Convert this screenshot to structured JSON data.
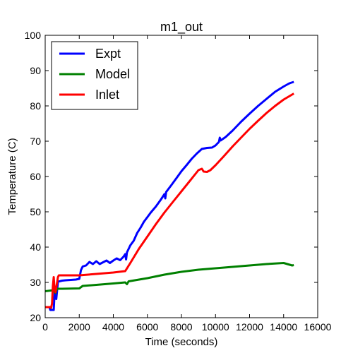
{
  "chart_data": {
    "type": "line",
    "title": "m1_out",
    "xlabel": "Time (seconds)",
    "ylabel": "Temperature (C)",
    "xlim": [
      0,
      16000
    ],
    "ylim": [
      20,
      100
    ],
    "xticks": [
      0,
      2000,
      4000,
      6000,
      8000,
      10000,
      12000,
      14000,
      16000
    ],
    "yticks": [
      20,
      30,
      40,
      50,
      60,
      70,
      80,
      90,
      100
    ],
    "xtick_labels": [
      "0",
      "2000",
      "4000",
      "6000",
      "8000",
      "10000",
      "12000",
      "14000",
      "16000"
    ],
    "ytick_labels": [
      "20",
      "30",
      "40",
      "50",
      "60",
      "70",
      "80",
      "90",
      "100"
    ],
    "grid": false,
    "legend_position": "top-left",
    "series": [
      {
        "name": "Expt",
        "color": "#0000ff",
        "points": [
          [
            0,
            23.0
          ],
          [
            250,
            23.0
          ],
          [
            300,
            22.2
          ],
          [
            500,
            22.2
          ],
          [
            550,
            27.0
          ],
          [
            650,
            25.3
          ],
          [
            750,
            30.2
          ],
          [
            1000,
            30.5
          ],
          [
            1200,
            30.6
          ],
          [
            1800,
            30.8
          ],
          [
            2000,
            31.0
          ],
          [
            2100,
            33.5
          ],
          [
            2200,
            34.5
          ],
          [
            2400,
            34.8
          ],
          [
            2600,
            35.8
          ],
          [
            2800,
            35.2
          ],
          [
            3000,
            36.0
          ],
          [
            3200,
            35.2
          ],
          [
            3400,
            35.7
          ],
          [
            3600,
            36.2
          ],
          [
            3800,
            35.5
          ],
          [
            4000,
            36.2
          ],
          [
            4200,
            36.8
          ],
          [
            4400,
            36.3
          ],
          [
            4600,
            37.3
          ],
          [
            4700,
            38.0
          ],
          [
            4750,
            36.5
          ],
          [
            4800,
            38.5
          ],
          [
            4900,
            39.5
          ],
          [
            5000,
            40.5
          ],
          [
            5200,
            41.8
          ],
          [
            5400,
            44.0
          ],
          [
            5600,
            45.5
          ],
          [
            5800,
            47.2
          ],
          [
            6000,
            48.5
          ],
          [
            6200,
            49.8
          ],
          [
            6500,
            51.5
          ],
          [
            6800,
            53.5
          ],
          [
            7000,
            55.0
          ],
          [
            7050,
            53.8
          ],
          [
            7100,
            55.6
          ],
          [
            7400,
            57.5
          ],
          [
            7700,
            59.5
          ],
          [
            8000,
            61.5
          ],
          [
            8300,
            63.2
          ],
          [
            8600,
            65.0
          ],
          [
            8900,
            66.5
          ],
          [
            9200,
            67.8
          ],
          [
            9500,
            68.1
          ],
          [
            9800,
            68.2
          ],
          [
            10000,
            68.8
          ],
          [
            10200,
            69.8
          ],
          [
            10250,
            71.0
          ],
          [
            10300,
            70.2
          ],
          [
            10600,
            71.2
          ],
          [
            11000,
            73.0
          ],
          [
            11500,
            75.5
          ],
          [
            12000,
            77.8
          ],
          [
            12500,
            80.0
          ],
          [
            13000,
            82.0
          ],
          [
            13500,
            84.0
          ],
          [
            14000,
            85.5
          ],
          [
            14300,
            86.3
          ],
          [
            14400,
            86.5
          ],
          [
            14600,
            86.8
          ]
        ]
      },
      {
        "name": "Model",
        "color": "#008000",
        "points": [
          [
            0,
            27.5
          ],
          [
            500,
            27.8
          ],
          [
            600,
            27.0
          ],
          [
            700,
            28.2
          ],
          [
            1000,
            28.2
          ],
          [
            2000,
            28.3
          ],
          [
            2200,
            29.0
          ],
          [
            3000,
            29.3
          ],
          [
            4000,
            29.7
          ],
          [
            4700,
            30.0
          ],
          [
            4800,
            29.5
          ],
          [
            4900,
            30.3
          ],
          [
            6000,
            31.2
          ],
          [
            7000,
            32.2
          ],
          [
            8000,
            33.0
          ],
          [
            9000,
            33.6
          ],
          [
            10000,
            34.0
          ],
          [
            11000,
            34.4
          ],
          [
            12000,
            34.8
          ],
          [
            13000,
            35.2
          ],
          [
            14000,
            35.5
          ],
          [
            14500,
            34.8
          ],
          [
            14600,
            34.9
          ]
        ]
      },
      {
        "name": "Inlet",
        "color": "#ff0000",
        "points": [
          [
            0,
            23.0
          ],
          [
            300,
            23.0
          ],
          [
            350,
            22.8
          ],
          [
            400,
            24.0
          ],
          [
            450,
            29.0
          ],
          [
            500,
            31.5
          ],
          [
            550,
            28.0
          ],
          [
            600,
            27.2
          ],
          [
            700,
            30.0
          ],
          [
            750,
            31.5
          ],
          [
            800,
            32.0
          ],
          [
            1000,
            32.0
          ],
          [
            2000,
            32.0
          ],
          [
            3000,
            32.4
          ],
          [
            4000,
            32.8
          ],
          [
            4700,
            33.2
          ],
          [
            5000,
            35.5
          ],
          [
            5500,
            39.5
          ],
          [
            6000,
            43.0
          ],
          [
            6500,
            46.5
          ],
          [
            7000,
            49.8
          ],
          [
            7500,
            52.8
          ],
          [
            8000,
            55.8
          ],
          [
            8500,
            58.8
          ],
          [
            9000,
            61.8
          ],
          [
            9200,
            62.2
          ],
          [
            9300,
            61.4
          ],
          [
            9500,
            61.3
          ],
          [
            9700,
            61.8
          ],
          [
            10000,
            63.2
          ],
          [
            10500,
            65.8
          ],
          [
            11000,
            68.5
          ],
          [
            11500,
            71.0
          ],
          [
            12000,
            73.5
          ],
          [
            12500,
            75.8
          ],
          [
            13000,
            78.0
          ],
          [
            13500,
            80.0
          ],
          [
            14000,
            81.8
          ],
          [
            14600,
            83.5
          ]
        ]
      }
    ]
  }
}
